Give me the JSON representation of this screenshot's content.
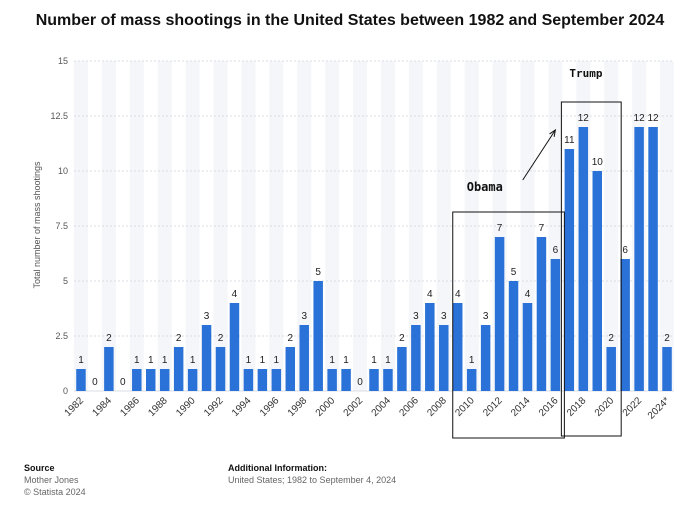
{
  "chart_data": {
    "type": "bar",
    "title": "Number of mass shootings in the United States between 1982 and September 2024",
    "ylabel": "Total number of mass shootings",
    "xlabel": "",
    "ylim": [
      0,
      15
    ],
    "yticks": [
      0,
      2.5,
      5,
      7.5,
      10,
      12.5,
      15
    ],
    "ytick_labels": [
      "0",
      "2.5",
      "5",
      "7.5",
      "10",
      "12.5",
      "15"
    ],
    "grid": true,
    "bar_color": "#2a72d8",
    "categories": [
      "1982",
      "1983",
      "1984",
      "1985",
      "1986",
      "1987",
      "1988",
      "1989",
      "1990",
      "1991",
      "1992",
      "1993",
      "1994",
      "1995",
      "1996",
      "1997",
      "1998",
      "1999",
      "2000",
      "2001",
      "2002",
      "2003",
      "2004",
      "2005",
      "2006",
      "2007",
      "2008",
      "2009",
      "2010",
      "2011",
      "2012",
      "2013",
      "2014",
      "2015",
      "2016",
      "2017",
      "2018",
      "2019",
      "2020",
      "2021",
      "2022",
      "2023",
      "2024*"
    ],
    "xtick_labels": [
      "1982",
      "",
      "1984",
      "",
      "1986",
      "",
      "1988",
      "",
      "1990",
      "",
      "1992",
      "",
      "1994",
      "",
      "1996",
      "",
      "1998",
      "",
      "2000",
      "",
      "2002",
      "",
      "2004",
      "",
      "2006",
      "",
      "2008",
      "",
      "2010",
      "",
      "2012",
      "",
      "2014",
      "",
      "2016",
      "",
      "2018",
      "",
      "2020",
      "",
      "2022",
      "",
      "2024*"
    ],
    "values": [
      1,
      0,
      2,
      0,
      1,
      1,
      1,
      2,
      1,
      3,
      2,
      4,
      1,
      1,
      1,
      2,
      3,
      5,
      1,
      1,
      0,
      1,
      1,
      2,
      3,
      4,
      3,
      4,
      1,
      3,
      7,
      5,
      4,
      7,
      6,
      11,
      12,
      10,
      2,
      6,
      12,
      12,
      2
    ],
    "value_labels": [
      "1",
      "0",
      "2",
      "0",
      "1",
      "1",
      "1",
      "2",
      "1",
      "3",
      "2",
      "4",
      "1",
      "1",
      "1",
      "2",
      "3",
      "5",
      "1",
      "1",
      "0",
      "1",
      "1",
      "2",
      "3",
      "4",
      "3",
      "4",
      "1",
      "3",
      "7",
      "5",
      "4",
      "7",
      "6",
      "11",
      "12",
      "10",
      "2",
      "6",
      "12",
      "12",
      "2"
    ],
    "annotations": [
      {
        "text": "Obama",
        "from_category": "2009",
        "to_category": "2016"
      },
      {
        "text": "Trump",
        "from_category": "2017",
        "to_category": "2020"
      }
    ]
  },
  "footer": {
    "source_head": "Source",
    "source_lines": [
      "Mother Jones",
      "© Statista 2024"
    ],
    "info_head": "Additional Information:",
    "info_line": "United States; 1982 to September 4, 2024"
  }
}
